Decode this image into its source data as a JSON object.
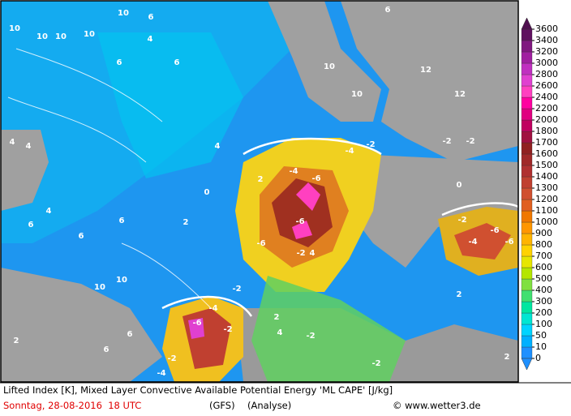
{
  "map": {
    "contour_labels": [
      10,
      6,
      10,
      10,
      10,
      10,
      6,
      4,
      4,
      4,
      4,
      6,
      6,
      6,
      10,
      10,
      6,
      0,
      2,
      4,
      2,
      -4,
      -6,
      -6,
      -6,
      -2,
      4,
      -6,
      -2,
      -2,
      -4,
      -2,
      -4,
      -2,
      -2,
      -4,
      -2,
      -2,
      -2,
      -2,
      -6,
      -6,
      -4,
      10,
      12,
      12,
      10,
      0,
      2,
      6,
      6,
      6,
      2,
      2,
      4,
      2
    ],
    "colorbar": {
      "ticks": [
        0,
        10,
        50,
        100,
        200,
        300,
        400,
        500,
        600,
        700,
        800,
        900,
        1000,
        1100,
        1200,
        1300,
        1400,
        1500,
        1600,
        1700,
        1800,
        2000,
        2200,
        2400,
        2600,
        2800,
        3000,
        3200,
        3400,
        3600
      ],
      "colors": [
        "#1e90ff",
        "#00b0ff",
        "#00d4ff",
        "#00e6d2",
        "#00e6a0",
        "#40e070",
        "#80e040",
        "#b4e600",
        "#e6e600",
        "#ffd200",
        "#ffb400",
        "#ff9600",
        "#f07800",
        "#e06020",
        "#d05030",
        "#c04030",
        "#b03030",
        "#a02828",
        "#902020",
        "#a01040",
        "#c00060",
        "#e00080",
        "#ff00a0",
        "#ff40c0",
        "#e040d0",
        "#c030c0",
        "#a020a0",
        "#801880",
        "#601060"
      ],
      "below_color": "#1e90ff",
      "above_color": "#501050"
    },
    "footer": {
      "description": "Lifted Index [K], Mixed Layer Convective Available Potential Energy 'ML CAPE' [J/kg]",
      "date": "Sonntag, 28-08-2016  18 UTC",
      "model": "(GFS)",
      "run": "(Analyse)",
      "credit": "© www.wetter3.de"
    }
  }
}
